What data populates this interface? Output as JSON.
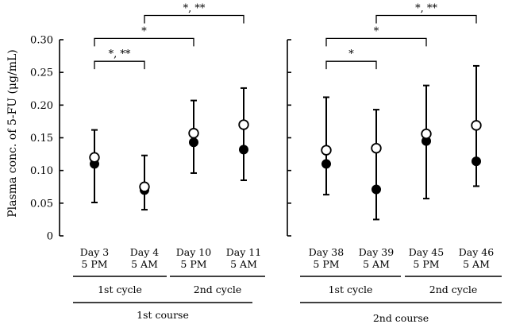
{
  "chart_data": {
    "type": "scatter",
    "ylabel": "Plasma conc. of 5-FU (μg/mL)",
    "ylim": [
      0,
      0.3
    ],
    "yticks": [
      0,
      0.05,
      0.1,
      0.15,
      0.2,
      0.25,
      0.3
    ],
    "ytick_labels": [
      "0",
      "0.05",
      "0.10",
      "0.15",
      "0.20",
      "0.25",
      "0.30"
    ],
    "panels": [
      {
        "course_label": "1st course",
        "cycles": [
          "1st cycle",
          "2nd cycle"
        ],
        "points": [
          {
            "day": "Day 3",
            "time": "5 PM",
            "open": 0.12,
            "filled": 0.11,
            "err_low": 0.051,
            "err_high": 0.162
          },
          {
            "day": "Day 4",
            "time": "5 AM",
            "open": 0.075,
            "filled": 0.07,
            "err_low": 0.04,
            "err_high": 0.123
          },
          {
            "day": "Day 10",
            "time": "5 PM",
            "open": 0.157,
            "filled": 0.143,
            "err_low": 0.096,
            "err_high": 0.207
          },
          {
            "day": "Day 11",
            "time": "5 AM",
            "open": 0.17,
            "filled": 0.132,
            "err_low": 0.085,
            "err_high": 0.226
          }
        ],
        "significance": [
          {
            "from": 0,
            "to": 1,
            "label": "*, **",
            "y": 0.267
          },
          {
            "from": 0,
            "to": 2,
            "label": "*",
            "y": 0.302
          },
          {
            "from": 1,
            "to": 3,
            "label": "*, **",
            "y": 0.337
          }
        ]
      },
      {
        "course_label": "2nd course",
        "cycles": [
          "1st cycle",
          "2nd cycle"
        ],
        "points": [
          {
            "day": "Day 38",
            "time": "5 PM",
            "open": 0.131,
            "filled": 0.11,
            "err_low": 0.063,
            "err_high": 0.212
          },
          {
            "day": "Day 39",
            "time": "5 AM",
            "open": 0.134,
            "filled": 0.071,
            "err_low": 0.025,
            "err_high": 0.193
          },
          {
            "day": "Day 45",
            "time": "5 PM",
            "open": 0.156,
            "filled": 0.145,
            "err_low": 0.057,
            "err_high": 0.23
          },
          {
            "day": "Day 46",
            "time": "5 AM",
            "open": 0.169,
            "filled": 0.114,
            "err_low": 0.076,
            "err_high": 0.26
          }
        ],
        "significance": [
          {
            "from": 0,
            "to": 1,
            "label": "*",
            "y": 0.267
          },
          {
            "from": 0,
            "to": 2,
            "label": "*",
            "y": 0.302
          },
          {
            "from": 1,
            "to": 3,
            "label": "*, **",
            "y": 0.337
          }
        ]
      }
    ]
  }
}
